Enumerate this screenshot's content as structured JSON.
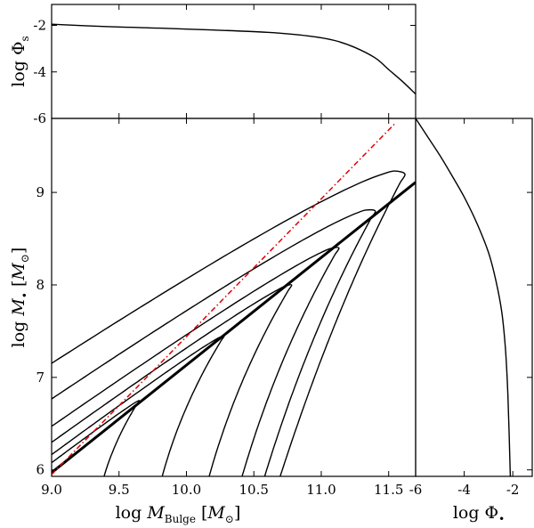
{
  "chart_data": [
    {
      "panel": "top",
      "type": "line",
      "ylabel_parts": [
        "log ",
        "Φ",
        "s"
      ],
      "xlim": [
        9.0,
        11.7
      ],
      "ylim": [
        -6,
        -1.1
      ],
      "yticks": [
        -6,
        -4,
        -2
      ],
      "ytick_labels": [
        "-6",
        "-4",
        "-2"
      ],
      "series": [
        {
          "x": [
            9.0,
            9.4,
            9.8,
            10.2,
            10.6,
            10.9,
            11.1,
            11.25,
            11.4,
            11.5,
            11.6,
            11.7
          ],
          "y": [
            -1.95,
            -2.05,
            -2.12,
            -2.2,
            -2.3,
            -2.45,
            -2.65,
            -2.95,
            -3.4,
            -3.9,
            -4.4,
            -4.95
          ]
        }
      ]
    },
    {
      "panel": "main",
      "type": "line",
      "xlabel_parts": [
        "log ",
        "M",
        "Bulge",
        " [",
        "M",
        "⊙",
        "]"
      ],
      "ylabel_parts": [
        "log ",
        "M",
        "•",
        " [",
        "M",
        "⊙",
        "]"
      ],
      "xlim": [
        9.0,
        11.7
      ],
      "ylim": [
        5.93,
        9.8
      ],
      "xticks": [
        9.0,
        9.5,
        10.0,
        10.5,
        11.0,
        11.5
      ],
      "xtick_labels": [
        "9.0",
        "9.5",
        "10.0",
        "10.5",
        "11.0",
        "11.5"
      ],
      "yticks": [
        6,
        7,
        8,
        9
      ],
      "ytick_labels": [
        "6",
        "7",
        "8",
        "9"
      ],
      "relation_line": {
        "x": [
          9.0,
          11.7
        ],
        "y": [
          5.97,
          9.11
        ]
      },
      "dashdot_line": {
        "x": [
          9.0,
          11.55
        ],
        "y": [
          5.95,
          9.75
        ]
      },
      "contours": [
        {
          "tip": [
            9.65,
            6.75
          ],
          "start_y": 6.45,
          "width": 0.07,
          "curvature": 2.2
        },
        {
          "tip": [
            10.28,
            7.45
          ],
          "start_y": 6.62,
          "width": 0.15,
          "curvature": 1.8
        },
        {
          "tip": [
            10.78,
            8.0
          ],
          "start_y": 6.75,
          "width": 0.26,
          "curvature": 1.5
        },
        {
          "tip": [
            11.13,
            8.4
          ],
          "start_y": 6.88,
          "width": 0.38,
          "curvature": 1.3
        },
        {
          "tip": [
            11.4,
            8.8
          ],
          "start_y": 6.99,
          "width": 0.52,
          "curvature": 1.15
        },
        {
          "tip": [
            11.62,
            9.2
          ],
          "start_y": 7.1,
          "width": 0.68,
          "curvature": 1.0
        }
      ]
    },
    {
      "panel": "right",
      "type": "line",
      "xlabel_parts": [
        "log ",
        "Φ",
        "•"
      ],
      "xlim": [
        -6,
        -1.2
      ],
      "ylim": [
        5.93,
        9.8
      ],
      "xticks": [
        -6,
        -4,
        -2
      ],
      "xtick_labels": [
        "-6",
        "-4",
        "-2"
      ],
      "series": [
        {
          "x": [
            -6.0,
            -5.5,
            -5.0,
            -4.5,
            -4.0,
            -3.5,
            -3.0,
            -2.7,
            -2.45,
            -2.3,
            -2.2,
            -2.1
          ],
          "y": [
            9.8,
            9.6,
            9.4,
            9.18,
            8.95,
            8.68,
            8.35,
            8.05,
            7.7,
            7.3,
            6.8,
            5.93
          ]
        }
      ]
    }
  ]
}
